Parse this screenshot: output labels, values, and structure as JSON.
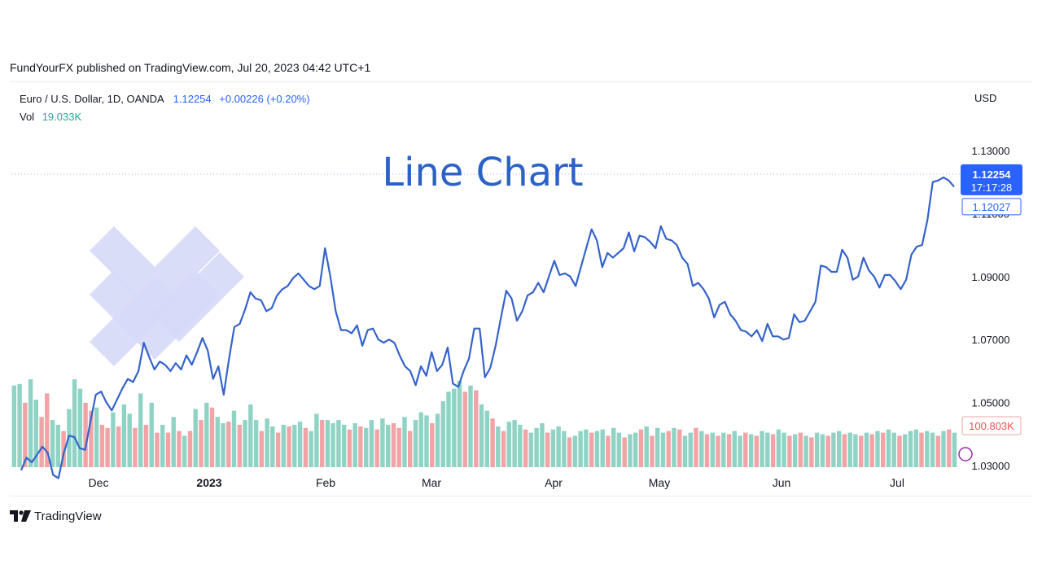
{
  "header": {
    "published_line": "FundYourFX published on TradingView.com, Jul 20, 2023 04:42 UTC+1"
  },
  "legend": {
    "symbol": "Euro / U.S. Dollar, 1D, OANDA",
    "price": "1.12254",
    "change": "+0.00226 (+0.20%)",
    "vol_label": "Vol",
    "vol_value": "19.033K"
  },
  "axis": {
    "currency": "USD"
  },
  "price_tag": {
    "price": "1.12254",
    "countdown": "17:17:28",
    "ref_price": "1.12027",
    "volume_tag": "100.803K"
  },
  "overlay": {
    "title": "Line Chart"
  },
  "branding": {
    "name": "TradingView",
    "logo": "tradingview-logo-icon",
    "watermark": "fundyourfx-logo-watermark"
  },
  "colors": {
    "line": "#3563c9",
    "up_volume": "#8fd3c5",
    "down_volume": "#f1a3a6",
    "price_tag": "#2962ff",
    "watermark": "#d6d9f7"
  },
  "chart_data": {
    "type": "line",
    "title": "Line Chart",
    "y_ticks": [
      "1.03000",
      "1.05000",
      "1.07000",
      "1.09000",
      "1.11000",
      "1.13000"
    ],
    "y_range": [
      1.03,
      1.13
    ],
    "x_labels": [
      "Dec",
      "2023",
      "Feb",
      "Mar",
      "Apr",
      "May",
      "Jun",
      "Jul"
    ],
    "series": [
      {
        "values": [
          1.0285,
          1.0325,
          1.031,
          1.0335,
          1.036,
          1.034,
          1.027,
          1.026,
          1.034,
          1.0395,
          1.039,
          1.0355,
          1.035,
          1.044,
          1.0525,
          1.0535,
          1.05,
          1.0475,
          1.051,
          1.0545,
          1.0575,
          1.0565,
          1.06,
          1.069,
          1.0645,
          1.0605,
          1.063,
          1.062,
          1.06,
          1.0625,
          1.0605,
          1.065,
          1.062,
          1.066,
          1.0705,
          1.0665,
          1.0575,
          1.0615,
          1.0525,
          1.064,
          1.074,
          1.075,
          1.0795,
          1.085,
          1.083,
          1.0825,
          1.079,
          1.08,
          1.084,
          1.086,
          1.087,
          1.0895,
          1.091,
          1.089,
          1.087,
          1.086,
          1.087,
          1.099,
          1.09,
          1.079,
          1.073,
          1.073,
          1.072,
          1.0745,
          1.068,
          1.073,
          1.0735,
          1.07,
          1.069,
          1.07,
          1.069,
          1.065,
          1.0615,
          1.06,
          1.0555,
          1.0615,
          1.0585,
          1.066,
          1.06,
          1.062,
          1.0675,
          1.056,
          1.055,
          1.06,
          1.064,
          1.0735,
          1.0735,
          1.058,
          1.061,
          1.068,
          1.077,
          1.0855,
          1.083,
          1.076,
          1.079,
          1.084,
          1.085,
          1.088,
          1.085,
          1.09,
          1.095,
          1.0905,
          1.091,
          1.09,
          1.087,
          1.093,
          1.099,
          1.105,
          1.1015,
          1.093,
          1.0975,
          1.096,
          1.0975,
          1.099,
          1.104,
          1.098,
          1.103,
          1.1025,
          1.101,
          1.099,
          1.106,
          1.102,
          1.1015,
          1.1,
          1.096,
          1.094,
          1.087,
          1.088,
          1.086,
          1.083,
          1.077,
          1.081,
          1.082,
          1.078,
          1.076,
          1.073,
          1.0725,
          1.071,
          1.073,
          1.0695,
          1.075,
          1.071,
          1.071,
          1.07,
          1.0705,
          1.078,
          1.0755,
          1.076,
          1.079,
          1.082,
          1.0935,
          1.093,
          1.0915,
          1.0915,
          1.0985,
          1.096,
          1.089,
          1.09,
          1.096,
          1.092,
          1.09,
          1.0865,
          1.0905,
          1.0905,
          1.0885,
          1.086,
          1.089,
          1.097,
          1.0995,
          1.1,
          1.108,
          1.12,
          1.1205,
          1.1215,
          1.1205,
          1.1185
        ]
      }
    ],
    "volume_bars": [
      [
        "u",
        0.52
      ],
      [
        "u",
        0.53
      ],
      [
        "d",
        0.41
      ],
      [
        "u",
        0.56
      ],
      [
        "u",
        0.43
      ],
      [
        "d",
        0.32
      ],
      [
        "d",
        0.47
      ],
      [
        "u",
        0.3
      ],
      [
        "u",
        0.27
      ],
      [
        "d",
        0.23
      ],
      [
        "u",
        0.37
      ],
      [
        "u",
        0.56
      ],
      [
        "u",
        0.5
      ],
      [
        "d",
        0.41
      ],
      [
        "d",
        0.36
      ],
      [
        "u",
        0.38
      ],
      [
        "d",
        0.27
      ],
      [
        "d",
        0.25
      ],
      [
        "u",
        0.35
      ],
      [
        "d",
        0.26
      ],
      [
        "u",
        0.4
      ],
      [
        "u",
        0.34
      ],
      [
        "d",
        0.25
      ],
      [
        "u",
        0.47
      ],
      [
        "d",
        0.27
      ],
      [
        "u",
        0.41
      ],
      [
        "d",
        0.22
      ],
      [
        "u",
        0.27
      ],
      [
        "d",
        0.22
      ],
      [
        "u",
        0.32
      ],
      [
        "d",
        0.23
      ],
      [
        "u",
        0.2
      ],
      [
        "d",
        0.23
      ],
      [
        "u",
        0.37
      ],
      [
        "d",
        0.3
      ],
      [
        "u",
        0.41
      ],
      [
        "d",
        0.38
      ],
      [
        "u",
        0.32
      ],
      [
        "u",
        0.28
      ],
      [
        "d",
        0.29
      ],
      [
        "u",
        0.36
      ],
      [
        "d",
        0.27
      ],
      [
        "u",
        0.3
      ],
      [
        "u",
        0.4
      ],
      [
        "u",
        0.3
      ],
      [
        "d",
        0.23
      ],
      [
        "u",
        0.31
      ],
      [
        "u",
        0.26
      ],
      [
        "d",
        0.22
      ],
      [
        "u",
        0.27
      ],
      [
        "d",
        0.26
      ],
      [
        "u",
        0.27
      ],
      [
        "u",
        0.29
      ],
      [
        "d",
        0.25
      ],
      [
        "u",
        0.23
      ],
      [
        "u",
        0.34
      ],
      [
        "d",
        0.3
      ],
      [
        "u",
        0.3
      ],
      [
        "u",
        0.28
      ],
      [
        "u",
        0.3
      ],
      [
        "u",
        0.27
      ],
      [
        "d",
        0.24
      ],
      [
        "u",
        0.28
      ],
      [
        "d",
        0.26
      ],
      [
        "u",
        0.25
      ],
      [
        "u",
        0.3
      ],
      [
        "d",
        0.24
      ],
      [
        "u",
        0.31
      ],
      [
        "u",
        0.27
      ],
      [
        "d",
        0.28
      ],
      [
        "d",
        0.25
      ],
      [
        "u",
        0.32
      ],
      [
        "d",
        0.23
      ],
      [
        "u",
        0.3
      ],
      [
        "u",
        0.35
      ],
      [
        "u",
        0.33
      ],
      [
        "d",
        0.28
      ],
      [
        "u",
        0.34
      ],
      [
        "u",
        0.42
      ],
      [
        "u",
        0.48
      ],
      [
        "u",
        0.5
      ],
      [
        "u",
        0.55
      ],
      [
        "d",
        0.48
      ],
      [
        "u",
        0.52
      ],
      [
        "d",
        0.49
      ],
      [
        "u",
        0.4
      ],
      [
        "u",
        0.36
      ],
      [
        "d",
        0.31
      ],
      [
        "u",
        0.26
      ],
      [
        "d",
        0.23
      ],
      [
        "u",
        0.29
      ],
      [
        "u",
        0.3
      ],
      [
        "u",
        0.27
      ],
      [
        "d",
        0.24
      ],
      [
        "u",
        0.22
      ],
      [
        "u",
        0.25
      ],
      [
        "u",
        0.28
      ],
      [
        "d",
        0.22
      ],
      [
        "u",
        0.24
      ],
      [
        "u",
        0.26
      ],
      [
        "u",
        0.23
      ],
      [
        "d",
        0.19
      ],
      [
        "u",
        0.2
      ],
      [
        "u",
        0.23
      ],
      [
        "u",
        0.24
      ],
      [
        "d",
        0.22
      ],
      [
        "u",
        0.23
      ],
      [
        "u",
        0.24
      ],
      [
        "d",
        0.2
      ],
      [
        "u",
        0.25
      ],
      [
        "u",
        0.22
      ],
      [
        "d",
        0.19
      ],
      [
        "u",
        0.21
      ],
      [
        "u",
        0.22
      ],
      [
        "d",
        0.24
      ],
      [
        "u",
        0.26
      ],
      [
        "d",
        0.2
      ],
      [
        "u",
        0.25
      ],
      [
        "u",
        0.22
      ],
      [
        "d",
        0.23
      ],
      [
        "u",
        0.25
      ],
      [
        "d",
        0.24
      ],
      [
        "u",
        0.2
      ],
      [
        "u",
        0.22
      ],
      [
        "d",
        0.25
      ],
      [
        "u",
        0.23
      ],
      [
        "d",
        0.21
      ],
      [
        "u",
        0.22
      ],
      [
        "d",
        0.2
      ],
      [
        "u",
        0.22
      ],
      [
        "d",
        0.21
      ],
      [
        "u",
        0.23
      ],
      [
        "u",
        0.2
      ],
      [
        "d",
        0.22
      ],
      [
        "u",
        0.21
      ],
      [
        "d",
        0.2
      ],
      [
        "u",
        0.23
      ],
      [
        "u",
        0.22
      ],
      [
        "d",
        0.21
      ],
      [
        "u",
        0.24
      ],
      [
        "u",
        0.22
      ],
      [
        "d",
        0.2
      ],
      [
        "u",
        0.21
      ],
      [
        "d",
        0.22
      ],
      [
        "u",
        0.2
      ],
      [
        "d",
        0.19
      ],
      [
        "u",
        0.22
      ],
      [
        "u",
        0.21
      ],
      [
        "d",
        0.2
      ],
      [
        "u",
        0.22
      ],
      [
        "u",
        0.23
      ],
      [
        "d",
        0.21
      ],
      [
        "u",
        0.22
      ],
      [
        "u",
        0.21
      ],
      [
        "d",
        0.2
      ],
      [
        "u",
        0.22
      ],
      [
        "d",
        0.21
      ],
      [
        "u",
        0.23
      ],
      [
        "d",
        0.22
      ],
      [
        "u",
        0.24
      ],
      [
        "u",
        0.22
      ],
      [
        "d",
        0.2
      ],
      [
        "u",
        0.21
      ],
      [
        "u",
        0.23
      ],
      [
        "u",
        0.24
      ],
      [
        "d",
        0.22
      ],
      [
        "u",
        0.23
      ],
      [
        "u",
        0.22
      ],
      [
        "d",
        0.2
      ],
      [
        "u",
        0.23
      ],
      [
        "d",
        0.24
      ],
      [
        "u",
        0.22
      ]
    ]
  }
}
